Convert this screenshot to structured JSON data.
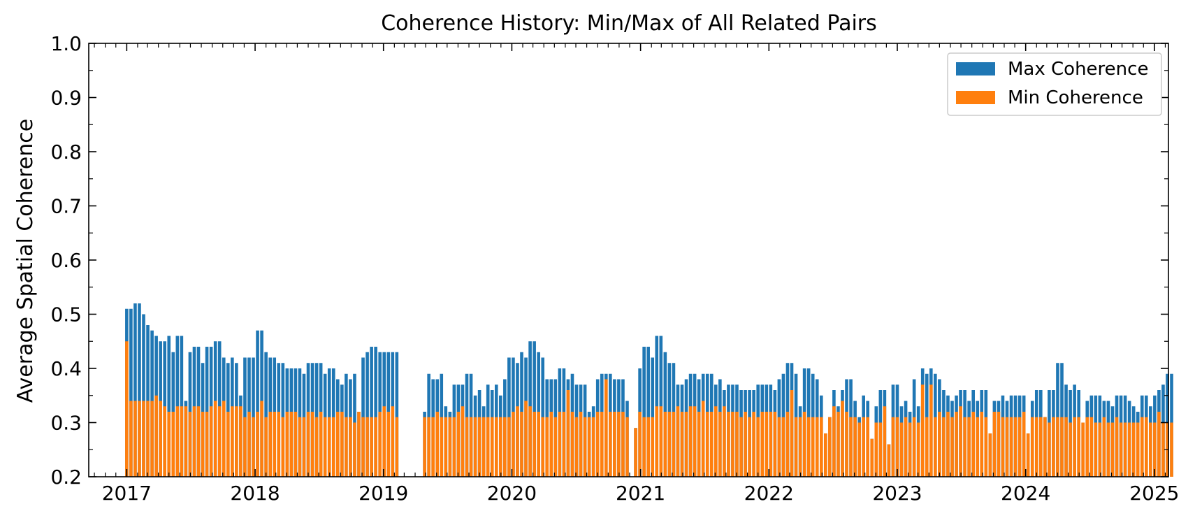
{
  "chart_data": {
    "type": "bar",
    "title": "Coherence History: Min/Max of All Related Pairs",
    "xlabel": "",
    "ylabel": "Average Spatial Coherence",
    "ylim": [
      0.2,
      1.0
    ],
    "xlim": [
      "2016-09-15",
      "2025-02-10"
    ],
    "y_ticks": [
      "0.2",
      "0.3",
      "0.4",
      "0.5",
      "0.6",
      "0.7",
      "0.8",
      "0.9",
      "1.0"
    ],
    "x_ticks": [
      "2017",
      "2018",
      "2019",
      "2020",
      "2021",
      "2022",
      "2023",
      "2024",
      "2025"
    ],
    "legend_position": "top-right",
    "grid": false,
    "colors": {
      "max": "#1f77b4",
      "min": "#ff7f0e"
    },
    "series": [
      {
        "name": "Max Coherence",
        "values": [
          0.51,
          0.51,
          0.52,
          0.52,
          0.5,
          0.48,
          0.47,
          0.46,
          0.45,
          0.45,
          0.46,
          0.43,
          0.46,
          0.46,
          0.34,
          0.43,
          0.44,
          0.44,
          0.41,
          0.44,
          0.44,
          0.45,
          0.45,
          0.42,
          0.41,
          0.42,
          0.41,
          0.35,
          0.42,
          0.42,
          0.42,
          0.47,
          0.47,
          0.43,
          0.42,
          0.42,
          0.41,
          0.41,
          0.4,
          0.4,
          0.4,
          0.4,
          0.39,
          0.41,
          0.41,
          0.41,
          0.41,
          0.39,
          0.4,
          0.4,
          0.38,
          0.37,
          0.39,
          0.38,
          0.39,
          0.32,
          0.42,
          0.43,
          0.44,
          0.44,
          0.43,
          0.43,
          0.43,
          0.43,
          0.43,
          0.32,
          0.39,
          0.38,
          0.38,
          0.39,
          0.33,
          0.32,
          0.37,
          0.37,
          0.37,
          0.39,
          0.39,
          0.35,
          0.36,
          0.33,
          0.37,
          0.36,
          0.37,
          0.35,
          0.38,
          0.42,
          0.42,
          0.41,
          0.43,
          0.42,
          0.45,
          0.45,
          0.43,
          0.42,
          0.38,
          0.38,
          0.38,
          0.4,
          0.4,
          0.38,
          0.39,
          0.37,
          0.37,
          0.37,
          0.32,
          0.33,
          0.38,
          0.39,
          0.39,
          0.39,
          0.38,
          0.38,
          0.38,
          0.34,
          0.29,
          0.4,
          0.44,
          0.44,
          0.42,
          0.46,
          0.46,
          0.43,
          0.41,
          0.41,
          0.37,
          0.37,
          0.38,
          0.39,
          0.39,
          0.38,
          0.39,
          0.39,
          0.39,
          0.37,
          0.38,
          0.36,
          0.37,
          0.37,
          0.37,
          0.36,
          0.36,
          0.36,
          0.36,
          0.37,
          0.37,
          0.37,
          0.37,
          0.36,
          0.38,
          0.39,
          0.41,
          0.41,
          0.39,
          0.33,
          0.4,
          0.4,
          0.39,
          0.38,
          0.35,
          0.28,
          0.31,
          0.36,
          0.33,
          0.36,
          0.38,
          0.38,
          0.34,
          0.31,
          0.35,
          0.34,
          0.27,
          0.33,
          0.36,
          0.36,
          0.26,
          0.37,
          0.37,
          0.33,
          0.34,
          0.32,
          0.38,
          0.33,
          0.4,
          0.39,
          0.4,
          0.39,
          0.38,
          0.36,
          0.35,
          0.34,
          0.35,
          0.36,
          0.36,
          0.34,
          0.36,
          0.34,
          0.36,
          0.36,
          0.28,
          0.34,
          0.34,
          0.35,
          0.34,
          0.35,
          0.35,
          0.35,
          0.35,
          0.28,
          0.34,
          0.36,
          0.36,
          0.31,
          0.36,
          0.36,
          0.41,
          0.41,
          0.37,
          0.36,
          0.37,
          0.36,
          0.3,
          0.34,
          0.35,
          0.35,
          0.35,
          0.34,
          0.34,
          0.33,
          0.35,
          0.35,
          0.35,
          0.34,
          0.33,
          0.32,
          0.35,
          0.35,
          0.33,
          0.35,
          0.36,
          0.37,
          0.39,
          0.39
        ]
      },
      {
        "name": "Min Coherence",
        "values": [
          0.45,
          0.34,
          0.34,
          0.34,
          0.34,
          0.34,
          0.34,
          0.35,
          0.34,
          0.33,
          0.32,
          0.32,
          0.33,
          0.33,
          0.33,
          0.32,
          0.33,
          0.33,
          0.32,
          0.32,
          0.33,
          0.34,
          0.33,
          0.34,
          0.32,
          0.33,
          0.33,
          0.33,
          0.31,
          0.32,
          0.31,
          0.32,
          0.34,
          0.31,
          0.32,
          0.32,
          0.32,
          0.31,
          0.32,
          0.32,
          0.32,
          0.31,
          0.31,
          0.32,
          0.32,
          0.31,
          0.32,
          0.31,
          0.31,
          0.31,
          0.32,
          0.32,
          0.31,
          0.31,
          0.3,
          0.32,
          0.31,
          0.31,
          0.31,
          0.31,
          0.32,
          0.33,
          0.32,
          0.33,
          0.31,
          0.31,
          0.31,
          0.31,
          0.32,
          0.31,
          0.31,
          0.31,
          0.31,
          0.32,
          0.33,
          0.31,
          0.31,
          0.31,
          0.31,
          0.31,
          0.31,
          0.31,
          0.31,
          0.31,
          0.31,
          0.31,
          0.32,
          0.33,
          0.32,
          0.34,
          0.33,
          0.32,
          0.32,
          0.31,
          0.31,
          0.32,
          0.31,
          0.32,
          0.32,
          0.36,
          0.32,
          0.31,
          0.32,
          0.31,
          0.31,
          0.31,
          0.32,
          0.32,
          0.38,
          0.32,
          0.32,
          0.32,
          0.32,
          0.31,
          0.29,
          0.32,
          0.31,
          0.31,
          0.31,
          0.33,
          0.33,
          0.32,
          0.32,
          0.32,
          0.33,
          0.32,
          0.32,
          0.33,
          0.33,
          0.32,
          0.34,
          0.32,
          0.32,
          0.33,
          0.32,
          0.33,
          0.32,
          0.32,
          0.32,
          0.31,
          0.32,
          0.31,
          0.32,
          0.31,
          0.32,
          0.32,
          0.32,
          0.32,
          0.31,
          0.31,
          0.32,
          0.36,
          0.31,
          0.31,
          0.32,
          0.31,
          0.31,
          0.31,
          0.31,
          0.28,
          0.31,
          0.33,
          0.32,
          0.34,
          0.32,
          0.31,
          0.31,
          0.3,
          0.31,
          0.31,
          0.27,
          0.3,
          0.3,
          0.33,
          0.26,
          0.31,
          0.31,
          0.3,
          0.31,
          0.3,
          0.31,
          0.3,
          0.37,
          0.31,
          0.37,
          0.31,
          0.32,
          0.31,
          0.32,
          0.31,
          0.32,
          0.33,
          0.31,
          0.31,
          0.32,
          0.31,
          0.32,
          0.31,
          0.28,
          0.32,
          0.32,
          0.31,
          0.31,
          0.31,
          0.31,
          0.31,
          0.32,
          0.28,
          0.31,
          0.31,
          0.31,
          0.31,
          0.3,
          0.31,
          0.31,
          0.31,
          0.31,
          0.3,
          0.31,
          0.31,
          0.3,
          0.31,
          0.31,
          0.3,
          0.3,
          0.31,
          0.3,
          0.3,
          0.31,
          0.3,
          0.3,
          0.3,
          0.3,
          0.3,
          0.31,
          0.31,
          0.3,
          0.3,
          0.32,
          0.3,
          0.3,
          0.3
        ]
      }
    ],
    "x": [
      "2017-01-01",
      "2017-01-13",
      "2017-01-25",
      "2017-02-06",
      "2017-02-18",
      "2017-03-02",
      "2017-03-14",
      "2017-03-26",
      "2017-04-07",
      "2017-04-19",
      "2017-05-01",
      "2017-05-13",
      "2017-05-25",
      "2017-06-06",
      "2017-06-18",
      "2017-06-30",
      "2017-07-12",
      "2017-07-24",
      "2017-08-05",
      "2017-08-17",
      "2017-08-29",
      "2017-09-10",
      "2017-09-22",
      "2017-10-04",
      "2017-10-16",
      "2017-10-28",
      "2017-11-09",
      "2017-11-21",
      "2017-12-03",
      "2017-12-15",
      "2017-12-27",
      "2018-01-08",
      "2018-01-20",
      "2018-02-01",
      "2018-02-13",
      "2018-02-25",
      "2018-03-09",
      "2018-03-21",
      "2018-04-02",
      "2018-04-14",
      "2018-04-26",
      "2018-05-08",
      "2018-05-20",
      "2018-06-01",
      "2018-06-13",
      "2018-06-25",
      "2018-07-07",
      "2018-07-19",
      "2018-07-31",
      "2018-08-12",
      "2018-08-24",
      "2018-09-05",
      "2018-09-17",
      "2018-09-29",
      "2018-10-11",
      "2018-10-23",
      "2018-11-04",
      "2018-11-16",
      "2018-11-28",
      "2018-12-10",
      "2018-12-22",
      "2019-01-03",
      "2019-01-15",
      "2019-01-27",
      "2019-02-08",
      "2019-04-28",
      "2019-05-10",
      "2019-05-22",
      "2019-06-03",
      "2019-06-15",
      "2019-06-27",
      "2019-07-09",
      "2019-07-21",
      "2019-08-02",
      "2019-08-14",
      "2019-08-26",
      "2019-09-07",
      "2019-09-19",
      "2019-10-01",
      "2019-10-13",
      "2019-10-25",
      "2019-11-06",
      "2019-11-18",
      "2019-11-30",
      "2019-12-12",
      "2019-12-24",
      "2020-01-05",
      "2020-01-17",
      "2020-01-29",
      "2020-02-10",
      "2020-02-22",
      "2020-03-05",
      "2020-03-17",
      "2020-03-29",
      "2020-04-10",
      "2020-04-22",
      "2020-05-04",
      "2020-05-16",
      "2020-05-28",
      "2020-06-09",
      "2020-06-21",
      "2020-07-03",
      "2020-07-15",
      "2020-07-27",
      "2020-08-08",
      "2020-08-20",
      "2020-09-01",
      "2020-09-13",
      "2020-09-25",
      "2020-10-07",
      "2020-10-19",
      "2020-10-31",
      "2020-11-12",
      "2020-11-24",
      "2020-12-18",
      "2020-12-30",
      "2021-01-11",
      "2021-01-23",
      "2021-02-04",
      "2021-02-16",
      "2021-02-28",
      "2021-03-12",
      "2021-03-24",
      "2021-04-05",
      "2021-04-17",
      "2021-04-29",
      "2021-05-11",
      "2021-05-23",
      "2021-06-04",
      "2021-06-16",
      "2021-06-28",
      "2021-07-10",
      "2021-07-22",
      "2021-08-03",
      "2021-08-15",
      "2021-08-27",
      "2021-09-08",
      "2021-09-20",
      "2021-10-02",
      "2021-10-14",
      "2021-10-26",
      "2021-11-07",
      "2021-11-19",
      "2021-12-01",
      "2021-12-13",
      "2021-12-25",
      "2022-01-06",
      "2022-01-18",
      "2022-01-30",
      "2022-02-11",
      "2022-02-23",
      "2022-03-07",
      "2022-03-19",
      "2022-03-31",
      "2022-04-12",
      "2022-04-24",
      "2022-05-06",
      "2022-05-18",
      "2022-05-30",
      "2022-06-11",
      "2022-06-23",
      "2022-07-05",
      "2022-07-17",
      "2022-07-29",
      "2022-08-10",
      "2022-08-22",
      "2022-09-03",
      "2022-09-15",
      "2022-09-27",
      "2022-10-09",
      "2022-10-21",
      "2022-11-02",
      "2022-11-14",
      "2022-11-26",
      "2022-12-08",
      "2022-12-20",
      "2023-01-01",
      "2023-01-13",
      "2023-01-25",
      "2023-02-06",
      "2023-02-18",
      "2023-03-02",
      "2023-03-14",
      "2023-03-26",
      "2023-04-07",
      "2023-04-19",
      "2023-05-01",
      "2023-05-13",
      "2023-05-25",
      "2023-06-06",
      "2023-06-18",
      "2023-06-30",
      "2023-07-12",
      "2023-07-24",
      "2023-08-05",
      "2023-08-17",
      "2023-08-29",
      "2023-09-10",
      "2023-09-22",
      "2023-10-04",
      "2023-10-16",
      "2023-10-28",
      "2023-11-09",
      "2023-11-21",
      "2023-12-03",
      "2023-12-15",
      "2023-12-27",
      "2024-01-08",
      "2024-01-20",
      "2024-02-01",
      "2024-02-13",
      "2024-02-25",
      "2024-03-08",
      "2024-03-20",
      "2024-04-01",
      "2024-04-13",
      "2024-04-25",
      "2024-05-07",
      "2024-05-19",
      "2024-05-31",
      "2024-06-12",
      "2024-06-24",
      "2024-07-06",
      "2024-07-18",
      "2024-07-30",
      "2024-08-11",
      "2024-08-23",
      "2024-09-04",
      "2024-09-16",
      "2024-09-28",
      "2024-10-10",
      "2024-10-22",
      "2024-11-03",
      "2024-11-15",
      "2024-11-27",
      "2024-12-09",
      "2024-12-21",
      "2025-01-02",
      "2025-01-14",
      "2025-01-26",
      "2025-02-07",
      "2025-02-19"
    ]
  }
}
